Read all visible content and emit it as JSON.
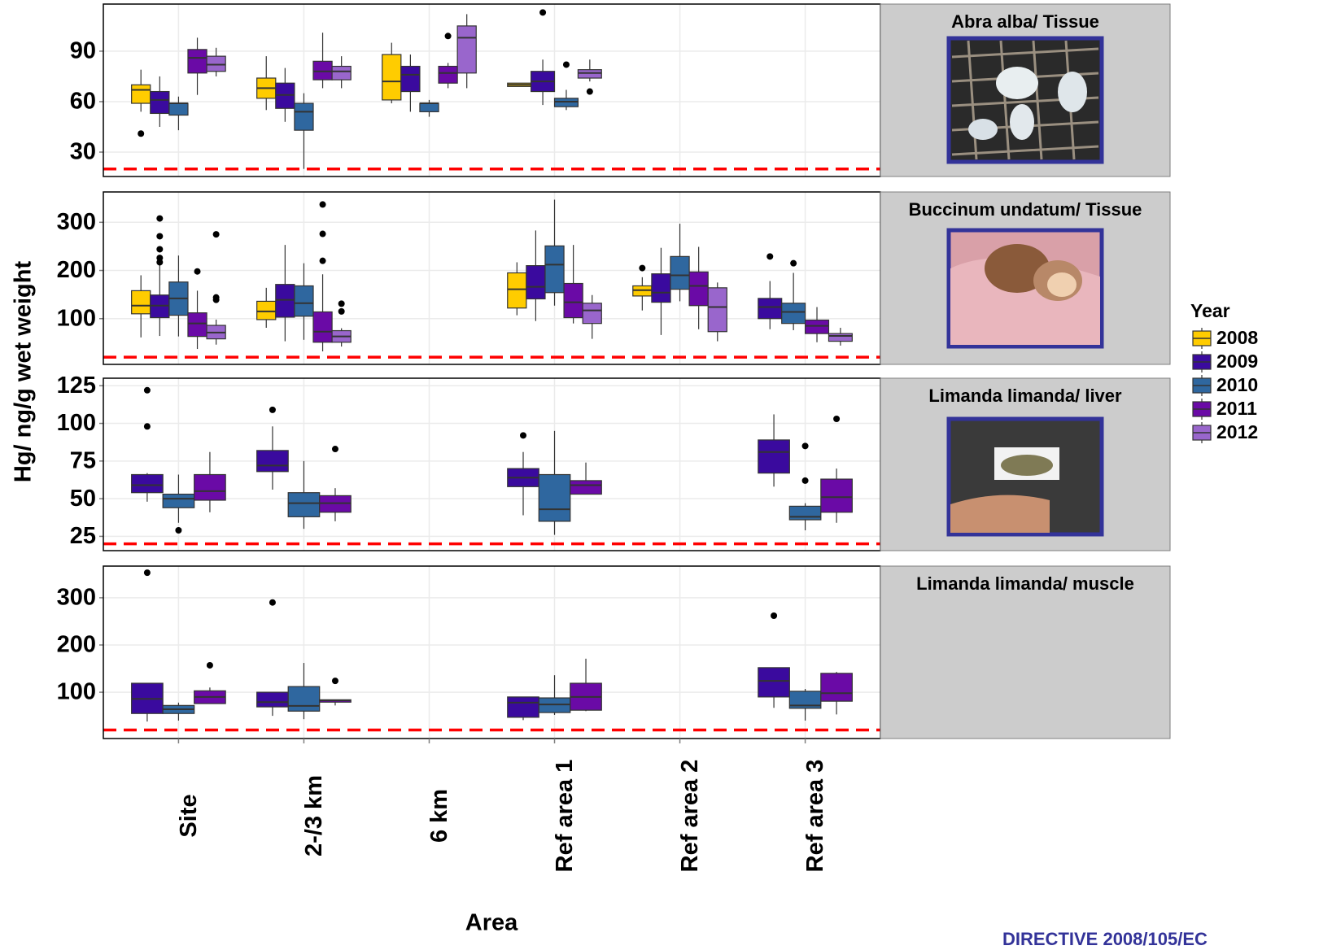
{
  "chart_data": {
    "type": "box",
    "y_label": "Hg/ ng/g wet weight",
    "x_label": "Area",
    "legend_title": "Year",
    "categories": [
      "Site",
      "2-/3 km",
      "6 km",
      "Ref area 1",
      "Ref area 2",
      "Ref area 3"
    ],
    "series": [
      {
        "name": "2008",
        "color": "#FFCC00"
      },
      {
        "name": "2009",
        "color": "#3A0A9E"
      },
      {
        "name": "2010",
        "color": "#2F679F"
      },
      {
        "name": "2011",
        "color": "#6A0AA6"
      },
      {
        "name": "2012",
        "color": "#9966CC"
      }
    ],
    "panels": [
      {
        "title": "Abra alba/ Tissue",
        "ylim": [
          15.5,
          118
        ],
        "yticks": [
          30,
          60,
          90
        ],
        "reference": 20,
        "values": [
          [
            {
              "min": 54,
              "q1": 59,
              "median": 67,
              "q3": 70,
              "max": 79,
              "outliers": [
                41
              ]
            },
            {
              "min": 55,
              "q1": 62,
              "median": 68,
              "q3": 74,
              "max": 87
            },
            {
              "min": 59,
              "q1": 61,
              "median": 72,
              "q3": 88,
              "max": 95
            },
            {
              "min": 69,
              "q1": 69,
              "median": 70,
              "q3": 71,
              "max": 71
            },
            null,
            null
          ],
          [
            {
              "min": 45,
              "q1": 53,
              "median": 61,
              "q3": 66,
              "max": 75
            },
            {
              "min": 48,
              "q1": 56,
              "median": 64,
              "q3": 71,
              "max": 80
            },
            {
              "min": 54,
              "q1": 66,
              "median": 76,
              "q3": 81,
              "max": 88
            },
            {
              "min": 58,
              "q1": 66,
              "median": 72,
              "q3": 78,
              "max": 85,
              "outliers": [
                113
              ]
            },
            null,
            null
          ],
          [
            {
              "min": 43,
              "q1": 52,
              "median": 59,
              "q3": 59,
              "max": 63
            },
            {
              "min": 20,
              "q1": 43,
              "median": 54,
              "q3": 59,
              "max": 65
            },
            {
              "min": 51,
              "q1": 54,
              "median": 59,
              "q3": 59,
              "max": 61
            },
            {
              "min": 55,
              "q1": 57,
              "median": 60,
              "q3": 62,
              "max": 67,
              "outliers": [
                82
              ]
            },
            null,
            null
          ],
          [
            {
              "min": 64,
              "q1": 77,
              "median": 86,
              "q3": 91,
              "max": 98
            },
            {
              "min": 68,
              "q1": 73,
              "median": 78,
              "q3": 84,
              "max": 101
            },
            {
              "min": 68,
              "q1": 71,
              "median": 77,
              "q3": 81,
              "max": 83,
              "outliers": [
                99
              ]
            },
            null,
            null,
            null
          ],
          [
            {
              "min": 75,
              "q1": 78,
              "median": 82,
              "q3": 87,
              "max": 92
            },
            {
              "min": 68,
              "q1": 73,
              "median": 78,
              "q3": 81,
              "max": 87
            },
            {
              "min": 68,
              "q1": 77,
              "median": 98,
              "q3": 105,
              "max": 112
            },
            {
              "min": 72,
              "q1": 74,
              "median": 77,
              "q3": 79,
              "max": 85,
              "outliers": [
                66
              ]
            },
            null,
            null
          ]
        ]
      },
      {
        "title": "Buccinum undatum/ Tissue",
        "ylim": [
          5,
          363
        ],
        "yticks": [
          100,
          200,
          300
        ],
        "reference": 20,
        "values": [
          [
            {
              "min": 61,
              "q1": 110,
              "median": 127,
              "q3": 158,
              "max": 190
            },
            {
              "min": 81,
              "q1": 98,
              "median": 115,
              "q3": 136,
              "max": 164
            },
            null,
            {
              "min": 107,
              "q1": 122,
              "median": 161,
              "q3": 195,
              "max": 217
            },
            {
              "min": 117,
              "q1": 147,
              "median": 159,
              "q3": 168,
              "max": 186,
              "outliers": [
                205
              ]
            },
            null
          ],
          [
            {
              "min": 64,
              "q1": 102,
              "median": 127,
              "q3": 149,
              "max": 229,
              "outliers": [
                308,
                271,
                244,
                226,
                217
              ]
            },
            {
              "min": 53,
              "q1": 103,
              "median": 139,
              "q3": 171,
              "max": 253
            },
            null,
            {
              "min": 95,
              "q1": 141,
              "median": 166,
              "q3": 210,
              "max": 283
            },
            {
              "min": 66,
              "q1": 134,
              "median": 154,
              "q3": 193,
              "max": 247
            },
            {
              "min": 78,
              "q1": 100,
              "median": 124,
              "q3": 142,
              "max": 178,
              "outliers": [
                229
              ]
            }
          ],
          [
            {
              "min": 63,
              "q1": 107,
              "median": 142,
              "q3": 176,
              "max": 231
            },
            {
              "min": 56,
              "q1": 105,
              "median": 132,
              "q3": 168,
              "max": 215
            },
            null,
            {
              "min": 127,
              "q1": 154,
              "median": 212,
              "q3": 251,
              "max": 347
            },
            {
              "min": 136,
              "q1": 161,
              "median": 190,
              "q3": 229,
              "max": 297
            },
            {
              "min": 76,
              "q1": 90,
              "median": 114,
              "q3": 132,
              "max": 195,
              "outliers": [
                215
              ]
            }
          ],
          [
            {
              "min": 37,
              "q1": 63,
              "median": 90,
              "q3": 112,
              "max": 158,
              "outliers": [
                198
              ]
            },
            {
              "min": 32,
              "q1": 51,
              "median": 73,
              "q3": 114,
              "max": 192,
              "outliers": [
                337,
                276,
                220
              ]
            },
            null,
            {
              "min": 90,
              "q1": 102,
              "median": 134,
              "q3": 173,
              "max": 253
            },
            {
              "min": 78,
              "q1": 127,
              "median": 168,
              "q3": 197,
              "max": 249
            },
            {
              "min": 51,
              "q1": 69,
              "median": 85,
              "q3": 97,
              "max": 124
            }
          ],
          [
            {
              "min": 46,
              "q1": 58,
              "median": 71,
              "q3": 86,
              "max": 98,
              "outliers": [
                275,
                144,
                139
              ]
            },
            {
              "min": 42,
              "q1": 51,
              "median": 63,
              "q3": 75,
              "max": 80,
              "outliers": [
                131,
                115
              ]
            },
            null,
            {
              "min": 58,
              "q1": 90,
              "median": 117,
              "q3": 132,
              "max": 149
            },
            {
              "min": 53,
              "q1": 73,
              "median": 124,
              "q3": 164,
              "max": 175
            },
            {
              "min": 44,
              "q1": 53,
              "median": 64,
              "q3": 69,
              "max": 81
            }
          ]
        ]
      },
      {
        "title": "Limanda limanda/ liver",
        "ylim": [
          15.5,
          130
        ],
        "yticks": [
          25,
          50,
          75,
          100,
          125
        ],
        "reference": 20,
        "values": [
          [
            null,
            null,
            null,
            null,
            null,
            null
          ],
          [
            {
              "min": 48,
              "q1": 54,
              "median": 59,
              "q3": 66,
              "max": 67,
              "outliers": [
                122,
                98
              ]
            },
            {
              "min": 56,
              "q1": 68,
              "median": 72,
              "q3": 82,
              "max": 98,
              "outliers": [
                109
              ]
            },
            null,
            {
              "min": 39,
              "q1": 58,
              "median": 64,
              "q3": 70,
              "max": 81,
              "outliers": [
                92
              ]
            },
            null,
            {
              "min": 58,
              "q1": 67,
              "median": 81,
              "q3": 89,
              "max": 106
            }
          ],
          [
            {
              "min": 34,
              "q1": 44,
              "median": 50,
              "q3": 53,
              "max": 66,
              "outliers": [
                29
              ]
            },
            {
              "min": 30,
              "q1": 38,
              "median": 47,
              "q3": 54,
              "max": 75
            },
            null,
            {
              "min": 26,
              "q1": 35,
              "median": 43,
              "q3": 66,
              "max": 95
            },
            null,
            {
              "min": 29,
              "q1": 36,
              "median": 38,
              "q3": 45,
              "max": 47,
              "outliers": [
                85,
                62
              ]
            }
          ],
          [
            {
              "min": 41,
              "q1": 49,
              "median": 55,
              "q3": 66,
              "max": 81
            },
            {
              "min": 35,
              "q1": 41,
              "median": 47,
              "q3": 52,
              "max": 57,
              "outliers": [
                83
              ]
            },
            null,
            {
              "min": 53,
              "q1": 53,
              "median": 59,
              "q3": 62,
              "max": 74
            },
            null,
            {
              "min": 34,
              "q1": 41,
              "median": 51,
              "q3": 63,
              "max": 70,
              "outliers": [
                103
              ]
            }
          ],
          [
            null,
            null,
            null,
            null,
            null,
            null
          ]
        ]
      },
      {
        "title": "Limanda limanda/ muscle",
        "ylim": [
          2,
          367
        ],
        "yticks": [
          100,
          200,
          300
        ],
        "reference": 20,
        "values": [
          [
            null,
            null,
            null,
            null,
            null,
            null
          ],
          [
            {
              "min": 38,
              "q1": 55,
              "median": 86,
              "q3": 119,
              "max": 119,
              "outliers": [
                353
              ]
            },
            {
              "min": 50,
              "q1": 69,
              "median": 79,
              "q3": 100,
              "max": 100,
              "outliers": [
                290
              ]
            },
            null,
            {
              "min": 41,
              "q1": 47,
              "median": 78,
              "q3": 90,
              "max": 90
            },
            null,
            {
              "min": 67,
              "q1": 90,
              "median": 124,
              "q3": 152,
              "max": 152,
              "outliers": [
                262
              ]
            }
          ],
          [
            {
              "min": 40,
              "q1": 55,
              "median": 64,
              "q3": 72,
              "max": 78
            },
            {
              "min": 43,
              "q1": 60,
              "median": 71,
              "q3": 112,
              "max": 162
            },
            null,
            {
              "min": 52,
              "q1": 57,
              "median": 74,
              "q3": 88,
              "max": 136
            },
            null,
            {
              "min": 40,
              "q1": 66,
              "median": 72,
              "q3": 102,
              "max": 107
            }
          ],
          [
            {
              "min": 76,
              "q1": 76,
              "median": 90,
              "q3": 103,
              "max": 110,
              "outliers": [
                157
              ]
            },
            {
              "min": 72,
              "q1": 79,
              "median": 83,
              "q3": 84,
              "max": 84,
              "outliers": [
                124
              ]
            },
            null,
            {
              "min": 60,
              "q1": 62,
              "median": 90,
              "q3": 119,
              "max": 171
            },
            null,
            {
              "min": 53,
              "q1": 81,
              "median": 98,
              "q3": 140,
              "max": 143
            }
          ],
          [
            null,
            null,
            null,
            null,
            null,
            null
          ]
        ]
      }
    ],
    "footer": "DIRECTIVE 2008/105/EC"
  }
}
